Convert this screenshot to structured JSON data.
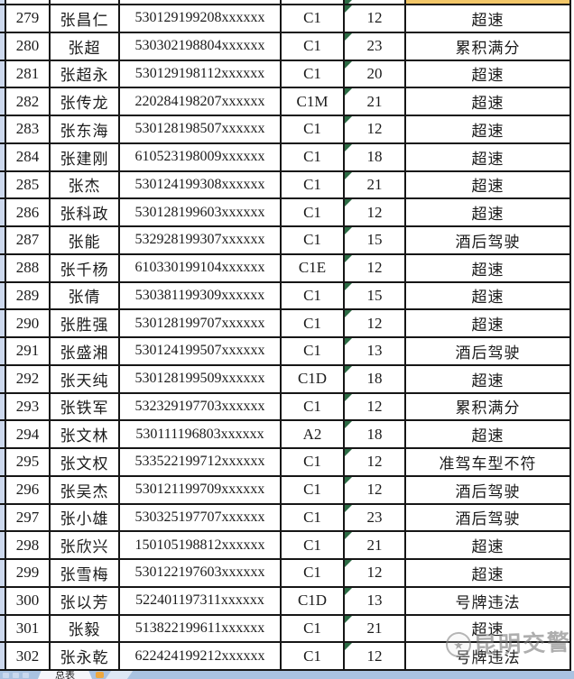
{
  "colors": {
    "grid_line": "#161616",
    "left_margin_strip": "#cdd9ee",
    "error_triangle_green": "#2c6b44",
    "highlight_cell_tan": "#f2c667",
    "tabbar_blue": "#a9c2e1",
    "tab_flag_orange": "#eda73f",
    "watermark_gray": "#7d7d7d"
  },
  "watermark": {
    "text": "昆明交警",
    "badge_icon": "police-badge-icon",
    "badge_glyph": "★"
  },
  "tabbar": {
    "sheet_tab_label": "总表"
  },
  "table": {
    "rows": [
      {
        "row_no": "279",
        "name": "张昌仁",
        "id_number": "530129199208xxxxxx",
        "license_class": "C1",
        "points": "12",
        "violation": "超速"
      },
      {
        "row_no": "280",
        "name": "张超",
        "id_number": "530302198804xxxxxx",
        "license_class": "C1",
        "points": "23",
        "violation": "累积满分"
      },
      {
        "row_no": "281",
        "name": "张超永",
        "id_number": "530129198112xxxxxx",
        "license_class": "C1",
        "points": "20",
        "violation": "超速"
      },
      {
        "row_no": "282",
        "name": "张传龙",
        "id_number": "220284198207xxxxxx",
        "license_class": "C1M",
        "points": "21",
        "violation": "超速"
      },
      {
        "row_no": "283",
        "name": "张东海",
        "id_number": "530128198507xxxxxx",
        "license_class": "C1",
        "points": "12",
        "violation": "超速"
      },
      {
        "row_no": "284",
        "name": "张建刚",
        "id_number": "610523198009xxxxxx",
        "license_class": "C1",
        "points": "18",
        "violation": "超速"
      },
      {
        "row_no": "285",
        "name": "张杰",
        "id_number": "530124199308xxxxxx",
        "license_class": "C1",
        "points": "21",
        "violation": "超速"
      },
      {
        "row_no": "286",
        "name": "张科政",
        "id_number": "530128199603xxxxxx",
        "license_class": "C1",
        "points": "12",
        "violation": "超速"
      },
      {
        "row_no": "287",
        "name": "张能",
        "id_number": "532928199307xxxxxx",
        "license_class": "C1",
        "points": "15",
        "violation": "酒后驾驶"
      },
      {
        "row_no": "288",
        "name": "张千杨",
        "id_number": "610330199104xxxxxx",
        "license_class": "C1E",
        "points": "12",
        "violation": "超速"
      },
      {
        "row_no": "289",
        "name": "张倩",
        "id_number": "530381199309xxxxxx",
        "license_class": "C1",
        "points": "15",
        "violation": "超速"
      },
      {
        "row_no": "290",
        "name": "张胜强",
        "id_number": "530128199707xxxxxx",
        "license_class": "C1",
        "points": "12",
        "violation": "超速"
      },
      {
        "row_no": "291",
        "name": "张盛湘",
        "id_number": "530124199507xxxxxx",
        "license_class": "C1",
        "points": "13",
        "violation": "酒后驾驶"
      },
      {
        "row_no": "292",
        "name": "张天纯",
        "id_number": "530128199509xxxxxx",
        "license_class": "C1D",
        "points": "18",
        "violation": "超速"
      },
      {
        "row_no": "293",
        "name": "张铁军",
        "id_number": "532329197703xxxxxx",
        "license_class": "C1",
        "points": "12",
        "violation": "累积满分"
      },
      {
        "row_no": "294",
        "name": "张文林",
        "id_number": "530111196803xxxxxx",
        "license_class": "A2",
        "points": "18",
        "violation": "超速"
      },
      {
        "row_no": "295",
        "name": "张文权",
        "id_number": "533522199712xxxxxx",
        "license_class": "C1",
        "points": "12",
        "violation": "准驾车型不符"
      },
      {
        "row_no": "296",
        "name": "张吴杰",
        "id_number": "530121199709xxxxxx",
        "license_class": "C1",
        "points": "12",
        "violation": "酒后驾驶"
      },
      {
        "row_no": "297",
        "name": "张小雄",
        "id_number": "530325197707xxxxxx",
        "license_class": "C1",
        "points": "23",
        "violation": "酒后驾驶"
      },
      {
        "row_no": "298",
        "name": "张欣兴",
        "id_number": "150105198812xxxxxx",
        "license_class": "C1",
        "points": "21",
        "violation": "超速"
      },
      {
        "row_no": "299",
        "name": "张雪梅",
        "id_number": "530122197603xxxxxx",
        "license_class": "C1",
        "points": "12",
        "violation": "超速"
      },
      {
        "row_no": "300",
        "name": "张以芳",
        "id_number": "522401197311xxxxxx",
        "license_class": "C1D",
        "points": "13",
        "violation": "号牌违法"
      },
      {
        "row_no": "301",
        "name": "张毅",
        "id_number": "513822199611xxxxxx",
        "license_class": "C1",
        "points": "21",
        "violation": "超速"
      },
      {
        "row_no": "302",
        "name": "张永乾",
        "id_number": "622424199212xxxxxx",
        "license_class": "C1",
        "points": "12",
        "violation": "号牌违法"
      }
    ]
  }
}
